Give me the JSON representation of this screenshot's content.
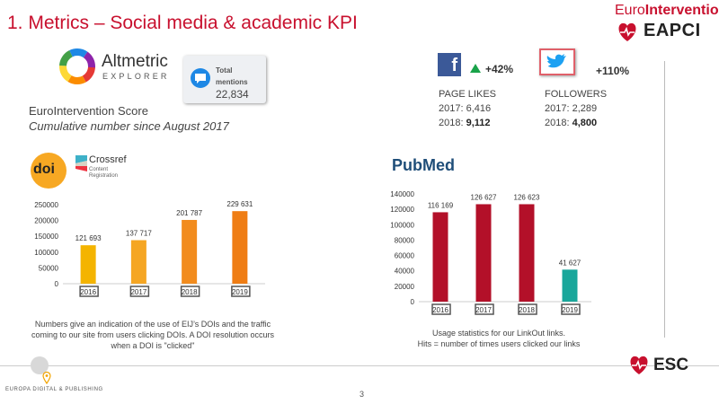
{
  "title": "1. Metrics – Social media & academic KPI",
  "logos": {
    "eurointervention_prefix": "Euro",
    "eurointervention_suffix": "Intervention",
    "eapci": "EAPCI",
    "altmetric_name": "Altmetric",
    "altmetric_sub": "EXPLORER",
    "crossref_name": "Crossref",
    "crossref_sub": "Content\nRegistration",
    "doi": "doi",
    "pubmed": "PubMed",
    "esc": "ESC",
    "europa": "EUROPA DIGITAL & PUBLISHING"
  },
  "altmetric": {
    "mentions_label": "Total\nmentions",
    "mentions_value": "22,834"
  },
  "score": {
    "title": "EuroIntervention Score",
    "subtitle": "Cumulative number since August 2017"
  },
  "facebook": {
    "change": "+42%",
    "label": "PAGE LIKES",
    "y2017": "2017: 6,416",
    "y2018_label": "2018: ",
    "y2018_value": "9,112"
  },
  "twitter": {
    "change": "+110%",
    "label": "FOLLOWERS",
    "y2017": "2017: 2,289",
    "y2018_label": "2018: ",
    "y2018_value": "4,800"
  },
  "doi_note": "Numbers give an indication of the use of EIJ’s DOIs and the traffic coming to our site from users clicking DOIs. A DOI resolution occurs when a DOI is \"clicked\"",
  "pubmed_note_1": "Usage statistics for our LinkOut links.",
  "pubmed_note_2": "Hits = number of times users clicked our links",
  "page_number": "3",
  "colors": {
    "title_red": "#c8102e",
    "doi_bars": [
      "#f4b400",
      "#f5a623",
      "#f28c1e",
      "#ef7d14"
    ],
    "pubmed_bar": "#b31029",
    "pubmed_last_bar": "#19a79b"
  },
  "chart_data": [
    {
      "type": "bar",
      "id": "doi",
      "categories": [
        "2016",
        "2017",
        "2018",
        "2019"
      ],
      "values": [
        121693,
        137717,
        201787,
        229631
      ],
      "labels": [
        "121 693",
        "137 717",
        "201 787",
        "229 631"
      ],
      "yticks": [
        "0",
        "50000",
        "100000",
        "150000",
        "200000",
        "250000"
      ],
      "ylim": [
        0,
        250000
      ],
      "title": "",
      "xlabel": "",
      "ylabel": ""
    },
    {
      "type": "bar",
      "id": "pubmed",
      "categories": [
        "2016",
        "2017",
        "2018",
        "2019"
      ],
      "values": [
        116169,
        126627,
        126623,
        41627
      ],
      "labels": [
        "116 169",
        "126 627",
        "126 623",
        "41 627"
      ],
      "yticks": [
        "0",
        "20000",
        "40000",
        "60000",
        "80000",
        "100000",
        "120000",
        "140000"
      ],
      "ylim": [
        0,
        140000
      ],
      "title": "",
      "xlabel": "",
      "ylabel": ""
    }
  ]
}
